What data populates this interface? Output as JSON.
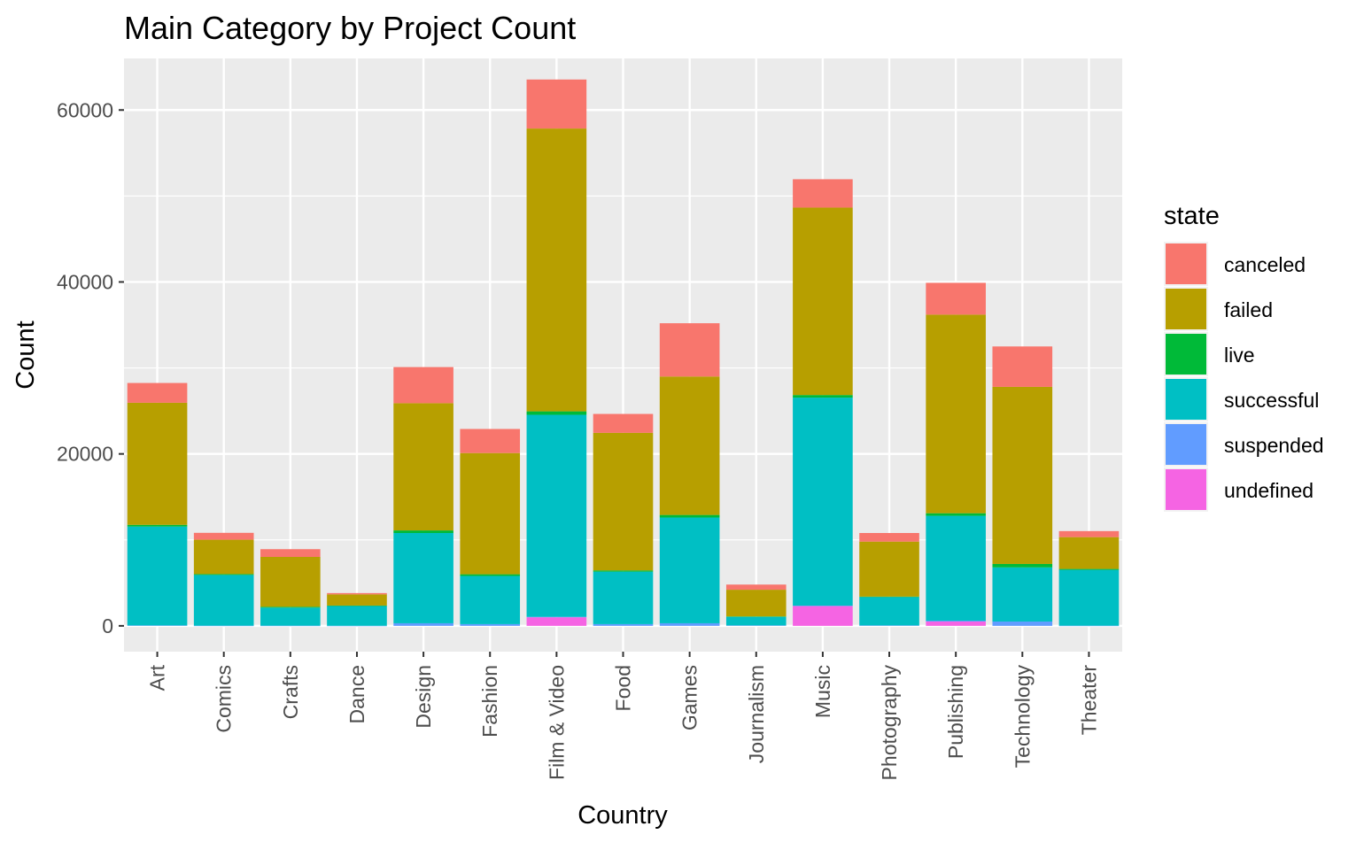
{
  "chart_data": {
    "type": "bar",
    "stacked": true,
    "title": "Main Category by Project Count",
    "xlabel": "Country",
    "ylabel": "Count",
    "ylim": [
      -3000,
      66000
    ],
    "yticks": [
      0,
      20000,
      40000,
      60000
    ],
    "ytick_labels": [
      "0",
      "20000",
      "40000",
      "60000"
    ],
    "grid": true,
    "legend": {
      "title": "state",
      "position": "right"
    },
    "categories": [
      "Art",
      "Comics",
      "Crafts",
      "Dance",
      "Design",
      "Fashion",
      "Film & Video",
      "Food",
      "Games",
      "Journalism",
      "Music",
      "Photography",
      "Publishing",
      "Technology",
      "Theater"
    ],
    "series": [
      {
        "name": "undefined",
        "color": "#F564E3",
        "values": [
          0,
          0,
          0,
          0,
          0,
          0,
          1000,
          0,
          0,
          0,
          2300,
          0,
          500,
          0,
          0
        ]
      },
      {
        "name": "suspended",
        "color": "#619CFF",
        "values": [
          50,
          20,
          20,
          10,
          300,
          200,
          50,
          200,
          300,
          50,
          50,
          50,
          100,
          500,
          20
        ]
      },
      {
        "name": "successful",
        "color": "#00BFC4",
        "values": [
          11500,
          5900,
          2100,
          2300,
          10500,
          5600,
          23500,
          6100,
          12300,
          1000,
          24200,
          3300,
          12200,
          6300,
          6500
        ]
      },
      {
        "name": "live",
        "color": "#00BA38",
        "values": [
          200,
          100,
          100,
          50,
          300,
          200,
          400,
          150,
          300,
          50,
          300,
          50,
          300,
          400,
          100
        ]
      },
      {
        "name": "failed",
        "color": "#B79F00",
        "values": [
          14200,
          4000,
          5800,
          1300,
          14800,
          14100,
          32900,
          16000,
          16100,
          3100,
          21800,
          6400,
          23100,
          20600,
          3700
        ]
      },
      {
        "name": "canceled",
        "color": "#F8766D",
        "values": [
          2300,
          800,
          900,
          150,
          4200,
          2800,
          5700,
          2200,
          6200,
          600,
          3300,
          1000,
          3700,
          4700,
          700
        ]
      }
    ],
    "legend_order": [
      "canceled",
      "failed",
      "live",
      "successful",
      "suspended",
      "undefined"
    ]
  }
}
